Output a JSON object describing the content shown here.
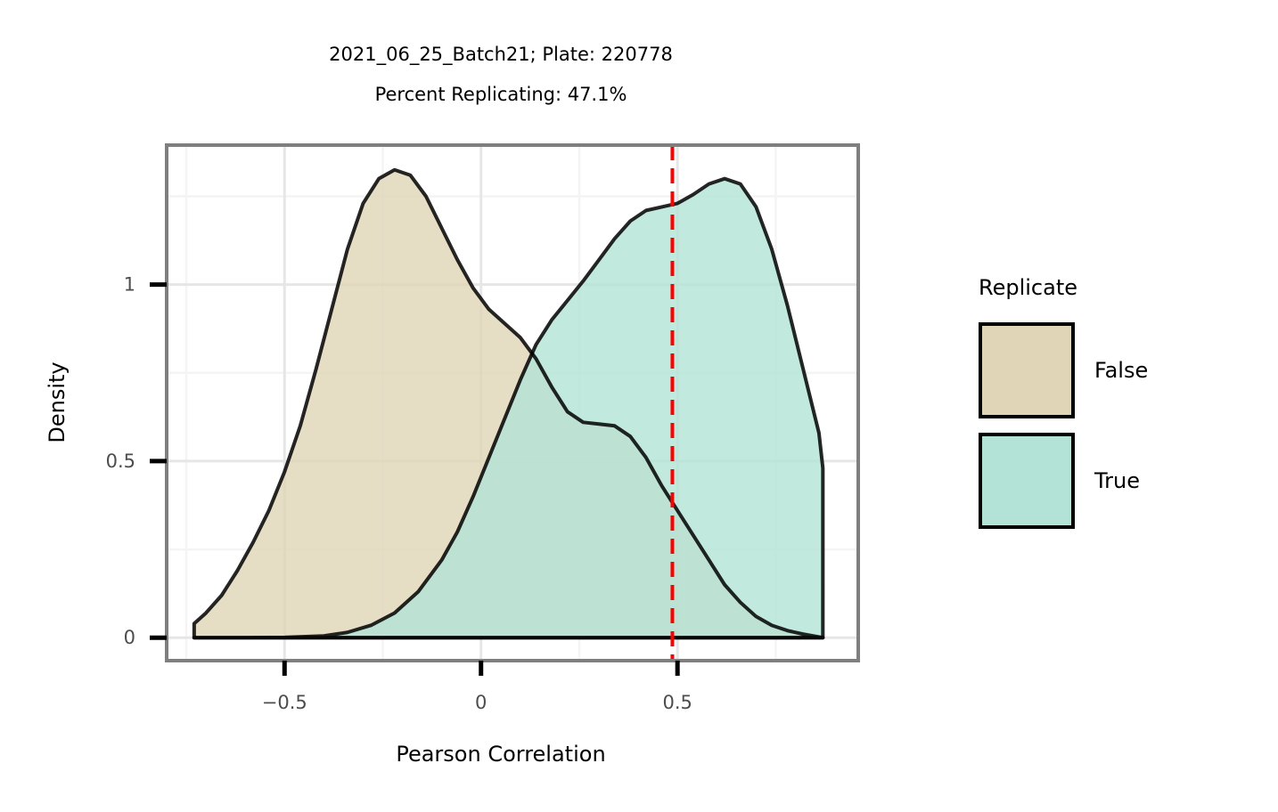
{
  "chart_data": {
    "type": "area",
    "title": "2021_06_25_Batch21; Plate: 220778",
    "subtitle": "Percent Replicating: 47.1%",
    "xlabel": "Pearson Correlation",
    "ylabel": "Density",
    "xlim": [
      -0.8,
      0.96
    ],
    "ylim": [
      -0.065,
      1.395
    ],
    "x_ticks": [
      -0.5,
      0,
      0.5
    ],
    "x_tick_labels": [
      "−0.5",
      "0",
      "0.5"
    ],
    "y_ticks": [
      0,
      0.5,
      1
    ],
    "y_tick_labels": [
      "0",
      "0.5",
      "1"
    ],
    "grid": true,
    "legend": {
      "title": "Replicate",
      "position": "right"
    },
    "threshold": {
      "x": 0.487,
      "color": "#ff0000",
      "style": "dashed"
    },
    "series": [
      {
        "name": "False",
        "color": "#e0d5b7",
        "points": [
          [
            -0.73,
            0.04
          ],
          [
            -0.7,
            0.07
          ],
          [
            -0.66,
            0.12
          ],
          [
            -0.62,
            0.19
          ],
          [
            -0.58,
            0.27
          ],
          [
            -0.54,
            0.36
          ],
          [
            -0.5,
            0.47
          ],
          [
            -0.46,
            0.6
          ],
          [
            -0.42,
            0.76
          ],
          [
            -0.38,
            0.93
          ],
          [
            -0.34,
            1.1
          ],
          [
            -0.3,
            1.23
          ],
          [
            -0.26,
            1.3
          ],
          [
            -0.22,
            1.325
          ],
          [
            -0.18,
            1.31
          ],
          [
            -0.14,
            1.25
          ],
          [
            -0.1,
            1.16
          ],
          [
            -0.06,
            1.07
          ],
          [
            -0.02,
            0.99
          ],
          [
            0.02,
            0.93
          ],
          [
            0.06,
            0.89
          ],
          [
            0.1,
            0.85
          ],
          [
            0.14,
            0.79
          ],
          [
            0.18,
            0.71
          ],
          [
            0.22,
            0.64
          ],
          [
            0.26,
            0.61
          ],
          [
            0.3,
            0.605
          ],
          [
            0.34,
            0.6
          ],
          [
            0.38,
            0.57
          ],
          [
            0.42,
            0.51
          ],
          [
            0.46,
            0.43
          ],
          [
            0.5,
            0.36
          ],
          [
            0.54,
            0.29
          ],
          [
            0.58,
            0.22
          ],
          [
            0.62,
            0.15
          ],
          [
            0.66,
            0.1
          ],
          [
            0.7,
            0.06
          ],
          [
            0.74,
            0.035
          ],
          [
            0.78,
            0.02
          ],
          [
            0.82,
            0.01
          ],
          [
            0.87,
            0.0
          ]
        ]
      },
      {
        "name": "True",
        "color": "#b3e3d6",
        "points": [
          [
            -0.73,
            0.0
          ],
          [
            -0.6,
            0.0
          ],
          [
            -0.5,
            0.001
          ],
          [
            -0.4,
            0.005
          ],
          [
            -0.34,
            0.015
          ],
          [
            -0.28,
            0.035
          ],
          [
            -0.22,
            0.07
          ],
          [
            -0.16,
            0.13
          ],
          [
            -0.1,
            0.22
          ],
          [
            -0.06,
            0.3
          ],
          [
            -0.02,
            0.4
          ],
          [
            0.02,
            0.51
          ],
          [
            0.06,
            0.62
          ],
          [
            0.1,
            0.73
          ],
          [
            0.14,
            0.83
          ],
          [
            0.18,
            0.9
          ],
          [
            0.22,
            0.955
          ],
          [
            0.26,
            1.01
          ],
          [
            0.3,
            1.07
          ],
          [
            0.34,
            1.13
          ],
          [
            0.38,
            1.18
          ],
          [
            0.42,
            1.21
          ],
          [
            0.46,
            1.22
          ],
          [
            0.5,
            1.23
          ],
          [
            0.54,
            1.255
          ],
          [
            0.58,
            1.285
          ],
          [
            0.62,
            1.3
          ],
          [
            0.66,
            1.285
          ],
          [
            0.7,
            1.22
          ],
          [
            0.74,
            1.1
          ],
          [
            0.78,
            0.94
          ],
          [
            0.82,
            0.76
          ],
          [
            0.86,
            0.58
          ],
          [
            0.87,
            0.48
          ]
        ]
      }
    ]
  }
}
